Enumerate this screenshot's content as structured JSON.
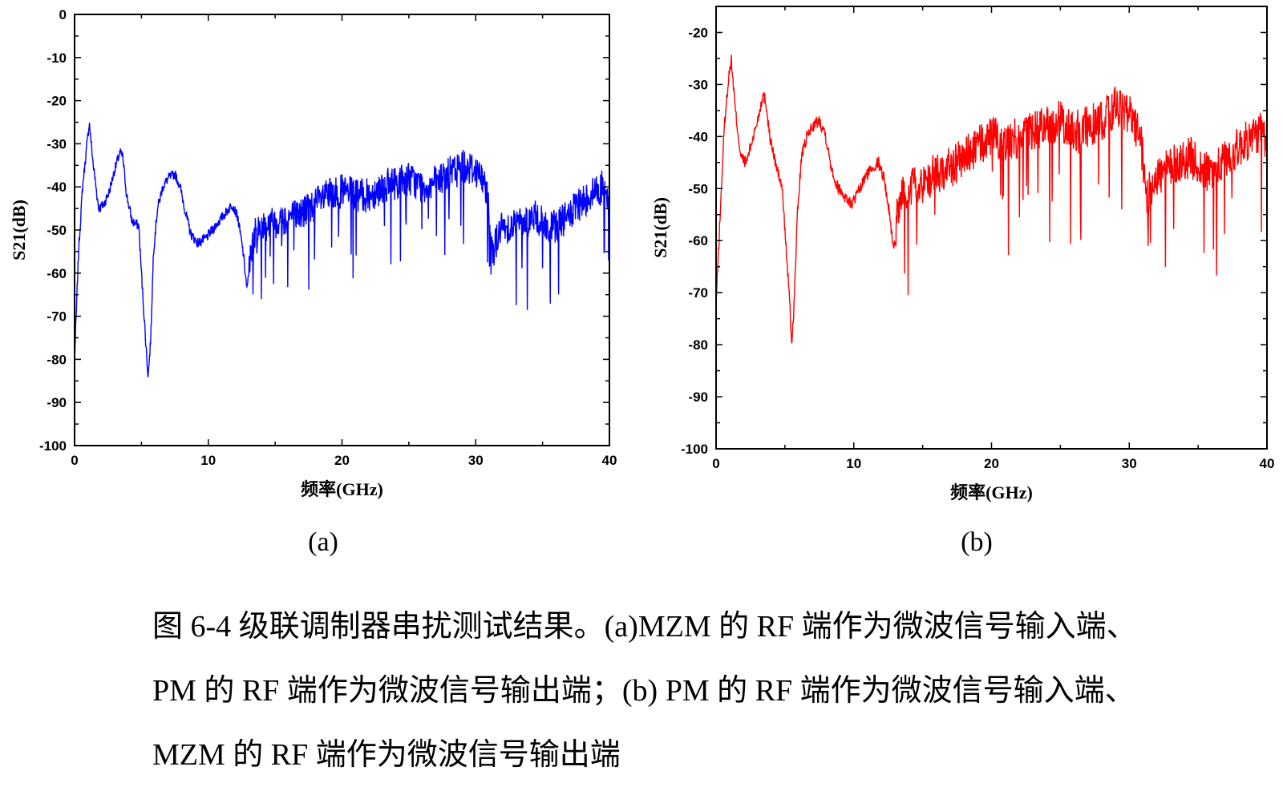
{
  "chart_data": [
    {
      "type": "line",
      "panel": "a",
      "panel_label": "(a)",
      "color": "#0000ff",
      "xlabel": "频率(GHz)",
      "ylabel": "S21(dB)",
      "xlim": [
        0,
        40
      ],
      "ylim": [
        -100,
        0
      ],
      "x_ticks": [
        "0",
        "10",
        "20",
        "30",
        "40"
      ],
      "y_ticks": [
        "0",
        "-10",
        "-20",
        "-30",
        "-40",
        "-50",
        "-60",
        "-70",
        "-80",
        "-90",
        "-100"
      ],
      "grid": false,
      "series": [
        {
          "x": [
            0,
            0.3,
            0.6,
            0.9,
            1.1,
            1.4,
            1.8,
            2.2,
            2.6,
            3.0,
            3.4,
            3.6,
            3.9,
            4.3,
            4.8,
            5.0,
            5.3,
            5.5,
            5.7,
            5.9,
            6.2,
            6.6,
            7.0,
            7.5,
            7.9,
            8.3,
            8.7,
            9.2,
            9.8,
            10.3,
            10.8,
            11.3,
            11.8,
            12.2,
            12.6,
            12.9,
            13.3,
            14,
            15,
            16,
            17,
            18,
            19,
            20,
            21,
            22,
            23,
            24,
            25,
            26,
            27,
            28,
            29,
            30,
            30.8,
            31.3,
            31.8,
            32.5,
            33.5,
            34.5,
            35.5,
            36.5,
            37.5,
            38.5,
            39.5,
            40
          ],
          "y": [
            -80,
            -55,
            -40,
            -31,
            -25,
            -35,
            -45,
            -44,
            -41,
            -36,
            -32,
            -33,
            -42,
            -48,
            -49,
            -60,
            -75,
            -84,
            -75,
            -55,
            -45,
            -40,
            -38,
            -37,
            -40,
            -46,
            -51,
            -53,
            -52,
            -50,
            -48,
            -46,
            -44,
            -47,
            -55,
            -64,
            -52,
            -49,
            -48,
            -47,
            -46,
            -44,
            -42,
            -41,
            -42,
            -42,
            -40,
            -39,
            -38,
            -40,
            -39,
            -37,
            -35,
            -36,
            -40,
            -55,
            -50,
            -49,
            -48,
            -47,
            -50,
            -48,
            -45,
            -42,
            -40,
            -45
          ]
        }
      ]
    },
    {
      "type": "line",
      "panel": "b",
      "panel_label": "(b)",
      "color": "#ff0000",
      "xlabel": "频率(GHz)",
      "ylabel": "S21(dB)",
      "xlim": [
        0,
        40
      ],
      "ylim": [
        -100,
        -15
      ],
      "x_ticks": [
        "0",
        "10",
        "20",
        "30",
        "40"
      ],
      "y_ticks": [
        "-20",
        "-30",
        "-40",
        "-50",
        "-60",
        "-70",
        "-80",
        "-90",
        "-100"
      ],
      "grid": false,
      "series": [
        {
          "x": [
            0,
            0.3,
            0.6,
            0.9,
            1.1,
            1.4,
            1.8,
            2.2,
            2.6,
            3.0,
            3.4,
            3.6,
            3.9,
            4.3,
            4.8,
            5.0,
            5.3,
            5.5,
            5.7,
            5.9,
            6.2,
            6.6,
            7.0,
            7.5,
            7.9,
            8.3,
            8.7,
            9.2,
            9.8,
            10.3,
            10.8,
            11.3,
            11.8,
            12.2,
            12.6,
            12.9,
            13.3,
            14,
            15,
            16,
            17,
            18,
            19,
            20,
            21,
            22,
            23,
            24,
            25,
            26,
            27,
            28,
            29,
            30,
            30.8,
            31.3,
            31.8,
            32.5,
            33.5,
            34.5,
            35.5,
            36.5,
            37.5,
            38.5,
            39.5,
            40
          ],
          "y": [
            -72,
            -55,
            -38,
            -29,
            -25,
            -35,
            -44,
            -45,
            -41,
            -37,
            -32,
            -33,
            -40,
            -45,
            -50,
            -58,
            -70,
            -80,
            -70,
            -55,
            -44,
            -40,
            -38,
            -37,
            -39,
            -45,
            -49,
            -51,
            -53,
            -51,
            -48,
            -46,
            -45,
            -48,
            -55,
            -62,
            -52,
            -50,
            -49,
            -47,
            -46,
            -44,
            -42,
            -40,
            -41,
            -40,
            -39,
            -38,
            -37,
            -39,
            -38,
            -37,
            -34,
            -36,
            -40,
            -52,
            -48,
            -47,
            -45,
            -44,
            -47,
            -46,
            -43,
            -41,
            -39,
            -42
          ]
        }
      ]
    }
  ],
  "caption": {
    "line1": "图 6-4  级联调制器串扰测试结果。(a)MZM 的 RF 端作为微波信号输入端、",
    "line2": "PM 的 RF 端作为微波信号输出端；(b) PM 的 RF 端作为微波信号输入端、",
    "line3": "MZM 的 RF 端作为微波信号输出端"
  }
}
